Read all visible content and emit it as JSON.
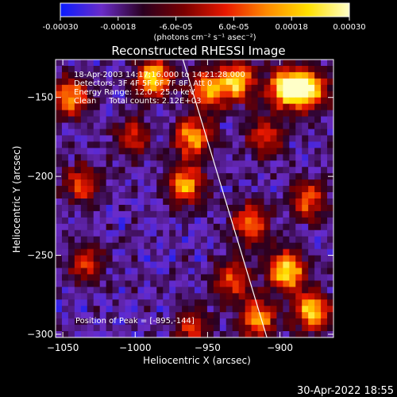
{
  "chart_data": {
    "type": "heatmap",
    "title": "Reconstructed RHESSI Image",
    "colorbar": {
      "ticks": [
        "-0.00030",
        "-0.00018",
        "-6.0e-05",
        "6.0e-05",
        "0.00018",
        "0.00030"
      ],
      "unit_label": "(photons cm⁻² s⁻¹ asec⁻²)",
      "range": [
        -0.0003,
        0.0003
      ],
      "stops": [
        "#0a1cff",
        "#6a2cc8",
        "#2a0020",
        "#7a0000",
        "#e81800",
        "#ff8a00",
        "#ffe000",
        "#ffffc8"
      ]
    },
    "xlabel": "Heliocentric X (arcsec)",
    "ylabel": "Heliocentric Y (arcsec)",
    "xlim": [
      -1055,
      -863
    ],
    "ylim": [
      -302,
      -126
    ],
    "xticks": [
      {
        "v": -1050,
        "l": "−1050"
      },
      {
        "v": -1000,
        "l": "−1000"
      },
      {
        "v": -950,
        "l": "−950"
      },
      {
        "v": -900,
        "l": "−900"
      }
    ],
    "yticks": [
      {
        "v": -150,
        "l": "−150"
      },
      {
        "v": -200,
        "l": "−200"
      },
      {
        "v": -250,
        "l": "−250"
      },
      {
        "v": -300,
        "l": "−300"
      }
    ],
    "annotations": [
      "18-Apr-2003 14:17:16.000 to 14:21:28.000",
      "Detectors: 3F 4F 5F 6F 7F 8F, Att 0",
      "Energy Range: 12.0 - 25.0 keV",
      "Clean     Total counts: 2.12E+03"
    ],
    "peak_label": "Position of Peak = [-895,-144]",
    "peak": [
      -895,
      -144
    ],
    "limb": [
      [
        -967,
        -126
      ],
      [
        -909,
        -302
      ]
    ],
    "sources": [
      {
        "x": -1044,
        "y": -150,
        "level": 0.7
      },
      {
        "x": -1036,
        "y": -205,
        "level": 0.5
      },
      {
        "x": -1034,
        "y": -255,
        "level": 0.45
      },
      {
        "x": -987,
        "y": -138,
        "level": 0.85
      },
      {
        "x": -1002,
        "y": -175,
        "level": 0.45
      },
      {
        "x": -960,
        "y": -175,
        "level": 0.75
      },
      {
        "x": -965,
        "y": -205,
        "level": 0.7
      },
      {
        "x": -950,
        "y": -145,
        "level": 0.7
      },
      {
        "x": -930,
        "y": -140,
        "level": 0.8
      },
      {
        "x": -895,
        "y": -144,
        "level": 1.0
      },
      {
        "x": -880,
        "y": -145,
        "level": 0.85
      },
      {
        "x": -910,
        "y": -175,
        "level": 0.5
      },
      {
        "x": -880,
        "y": -215,
        "level": 0.55
      },
      {
        "x": -920,
        "y": -230,
        "level": 0.65
      },
      {
        "x": -895,
        "y": -260,
        "level": 0.9
      },
      {
        "x": -878,
        "y": -285,
        "level": 0.8
      },
      {
        "x": -915,
        "y": -290,
        "level": 0.7
      },
      {
        "x": -933,
        "y": -265,
        "level": 0.5
      },
      {
        "x": -960,
        "y": -295,
        "level": 0.45
      }
    ]
  },
  "footer": {
    "timestamp": "30-Apr-2022 18:55"
  }
}
